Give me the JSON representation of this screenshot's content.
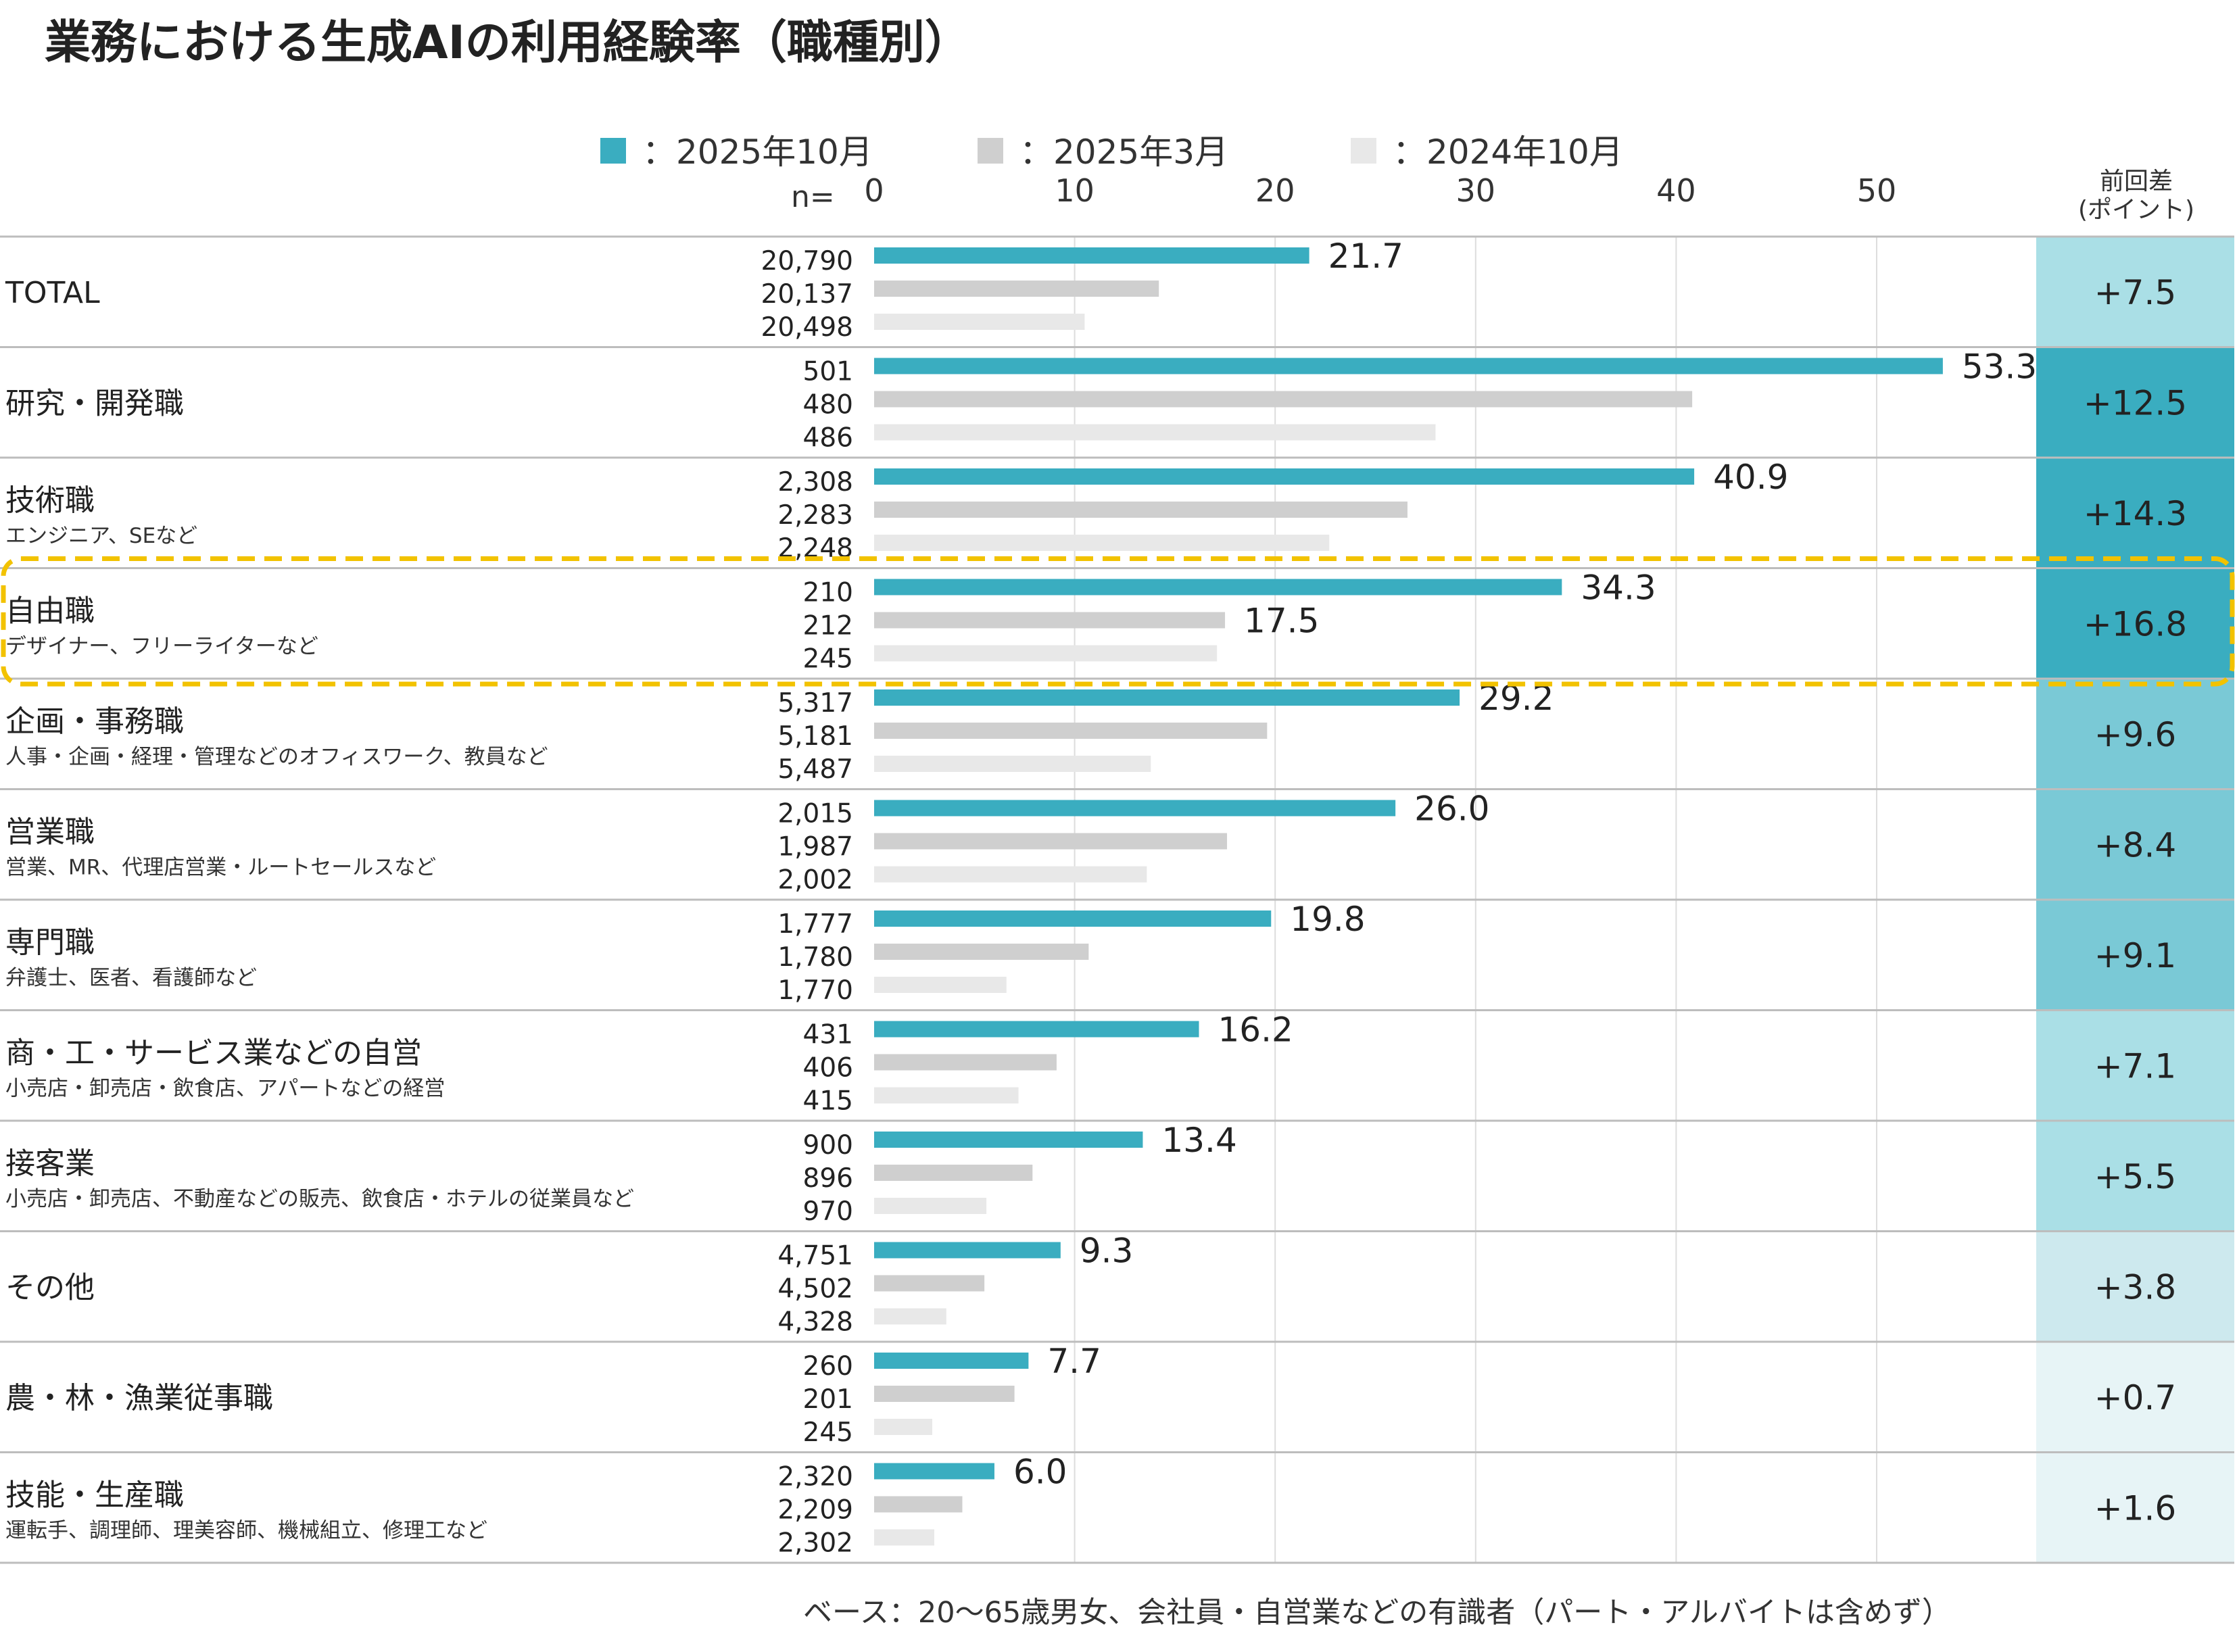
{
  "chart_data": {
    "type": "bar",
    "title": "業務における生成AIの利用経験率（職種別）",
    "legend": [
      {
        "name": "：2025年10月",
        "color": "#3aadc0"
      },
      {
        "name": "：2025年3月",
        "color": "#cfcfcf"
      },
      {
        "name": "：2024年10月",
        "color": "#e8e8e8"
      }
    ],
    "n_label": "n=",
    "diff_header": [
      "前回差",
      "(ポイント)"
    ],
    "xlim": [
      0,
      58
    ],
    "xticks": [
      0,
      10,
      20,
      30,
      40,
      50
    ],
    "footnote": "ベース：20〜65歳男女、会社員・自営業などの有識者（パート・アルバイトは含めず）",
    "highlight_index": 3,
    "categories": [
      {
        "label": "TOTAL",
        "sub": "",
        "n": [
          "20,790",
          "20,137",
          "20,498"
        ],
        "values": [
          21.7,
          14.2,
          10.5
        ],
        "labels": [
          "21.7",
          "",
          ""
        ],
        "diff": "+7.5",
        "diff_color": "#aadfe6"
      },
      {
        "label": "研究・開発職",
        "sub": "",
        "n": [
          "501",
          "480",
          "486"
        ],
        "values": [
          53.3,
          40.8,
          28.0
        ],
        "labels": [
          "53.3",
          "",
          ""
        ],
        "diff": "+12.5",
        "diff_color": "#3aadc0"
      },
      {
        "label": "技術職",
        "sub": "エンジニア、SEなど",
        "n": [
          "2,308",
          "2,283",
          "2,248"
        ],
        "values": [
          40.9,
          26.6,
          22.7
        ],
        "labels": [
          "40.9",
          "",
          ""
        ],
        "diff": "+14.3",
        "diff_color": "#3aadc0"
      },
      {
        "label": "自由職",
        "sub": "デザイナー、フリーライターなど",
        "n": [
          "210",
          "212",
          "245"
        ],
        "values": [
          34.3,
          17.5,
          17.1
        ],
        "labels": [
          "34.3",
          "17.5",
          ""
        ],
        "diff": "+16.8",
        "diff_color": "#3aadc0"
      },
      {
        "label": "企画・事務職",
        "sub": "人事・企画・経理・管理などのオフィスワーク、教員など",
        "n": [
          "5,317",
          "5,181",
          "5,487"
        ],
        "values": [
          29.2,
          19.6,
          13.8
        ],
        "labels": [
          "29.2",
          "",
          ""
        ],
        "diff": "+9.6",
        "diff_color": "#7ac9d6"
      },
      {
        "label": "営業職",
        "sub": "営業、MR、代理店営業・ルートセールスなど",
        "n": [
          "2,015",
          "1,987",
          "2,002"
        ],
        "values": [
          26.0,
          17.6,
          13.6
        ],
        "labels": [
          "26.0",
          "",
          ""
        ],
        "diff": "+8.4",
        "diff_color": "#7ac9d6"
      },
      {
        "label": "専門職",
        "sub": "弁護士、医者、看護師など",
        "n": [
          "1,777",
          "1,780",
          "1,770"
        ],
        "values": [
          19.8,
          10.7,
          6.6
        ],
        "labels": [
          "19.8",
          "",
          ""
        ],
        "diff": "+9.1",
        "diff_color": "#7ac9d6"
      },
      {
        "label": "商・工・サービス業などの自営",
        "sub": "小売店・卸売店・飲食店、アパートなどの経営",
        "n": [
          "431",
          "406",
          "415"
        ],
        "values": [
          16.2,
          9.1,
          7.2
        ],
        "labels": [
          "16.2",
          "",
          ""
        ],
        "diff": "+7.1",
        "diff_color": "#aadfe6"
      },
      {
        "label": "接客業",
        "sub": "小売店・卸売店、不動産などの販売、飲食店・ホテルの従業員など",
        "n": [
          "900",
          "896",
          "970"
        ],
        "values": [
          13.4,
          7.9,
          5.6
        ],
        "labels": [
          "13.4",
          "",
          ""
        ],
        "diff": "+5.5",
        "diff_color": "#aadfe6"
      },
      {
        "label": "その他",
        "sub": "",
        "n": [
          "4,751",
          "4,502",
          "4,328"
        ],
        "values": [
          9.3,
          5.5,
          3.6
        ],
        "labels": [
          "9.3",
          "",
          ""
        ],
        "diff": "+3.8",
        "diff_color": "#cde9ee"
      },
      {
        "label": "農・林・漁業従事職",
        "sub": "",
        "n": [
          "260",
          "201",
          "245"
        ],
        "values": [
          7.7,
          7.0,
          2.9
        ],
        "labels": [
          "7.7",
          "",
          ""
        ],
        "diff": "+0.7",
        "diff_color": "#e7f4f6"
      },
      {
        "label": "技能・生産職",
        "sub": "運転手、調理師、理美容師、機械組立、修理工など",
        "n": [
          "2,320",
          "2,209",
          "2,302"
        ],
        "values": [
          6.0,
          4.4,
          3.0
        ],
        "labels": [
          "6.0",
          "",
          ""
        ],
        "diff": "+1.6",
        "diff_color": "#e7f4f6"
      }
    ]
  }
}
